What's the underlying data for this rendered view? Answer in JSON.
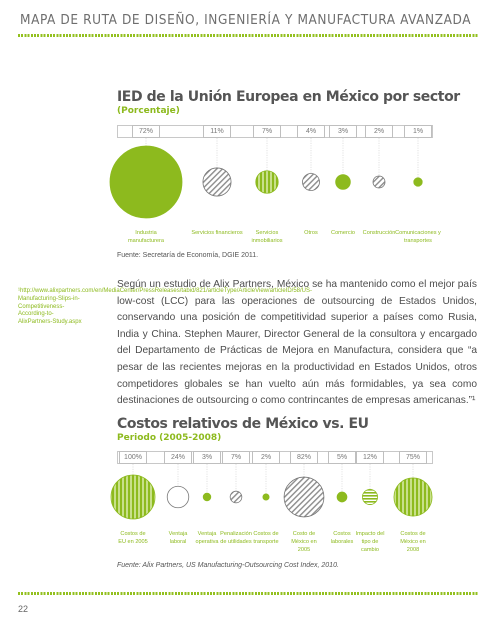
{
  "header": {
    "title": "MAPA DE RUTA DE DISEÑO, INGENIERÍA Y MANUFACTURA AVANZADA"
  },
  "chart_data": [
    {
      "type": "bubble",
      "title": "IED de la Unión Europea en México por sector",
      "subtitle": "(Porcentaje)",
      "categories": [
        "Industria manufacturera",
        "Servicios financieros",
        "Servicios inmobiliarios",
        "Otros",
        "Comercio",
        "Construcción",
        "Comunicaciones y transportes"
      ],
      "labels": [
        "72%",
        "11%",
        "7%",
        "4%",
        "3%",
        "2%",
        "1%"
      ],
      "values": [
        72,
        11,
        7,
        4,
        3,
        2,
        1
      ],
      "source": "Fuente: Secretaría de Economía, DGIE 2011."
    },
    {
      "type": "bubble",
      "title": "Costos relativos de México vs. EU",
      "subtitle": "Periodo (2005-2008)",
      "categories": [
        "Costos de EU en 2005",
        "Ventaja laboral",
        "Ventaja operativa",
        "Penalización de utilidades",
        "Costos de transporte",
        "Costo de México en 2005",
        "Costos laborales",
        "Impacto del tipo de cambio",
        "Costos de México en 2008"
      ],
      "labels": [
        "100%",
        "24%",
        "3%",
        "7%",
        "2%",
        "82%",
        "5%",
        "12%",
        "75%"
      ],
      "values": [
        100,
        24,
        3,
        7,
        2,
        82,
        5,
        12,
        75
      ],
      "source": "Fuente: Alix Partners, US Manufacturing-Outsourcing Cost Index, 2010."
    }
  ],
  "sidenote": "¹http://www.alixpartners.com/en/MediaCenter/PressReleases/tabid/821/articleType/ArticleView/articleID/58/US-Manufacturing-Slips-in-Competitiveness-According-to-AlixPartners-Study.aspx",
  "paragraph": "Según un estudio de Alix Partners, México se ha mantenido como el mejor país low-cost (LCC) para las operaciones de outsourcing de Estados Unidos, conservando una posición de competitividad superior a países como Rusia, India y China. Stephen Maurer, Director General de la consultora y encargado del Departamento de Prácticas de Mejora en Manufactura, considera que “a pesar de las recientes mejoras en la productividad en Estados Unidos, otros competidores globales se han vuelto aún más formidables, ya sea como destinaciones de outsourcing o como contrincantes de empresas americanas.”¹",
  "page_number": "22",
  "colors": {
    "green": "#8dba1e",
    "light_green": "#c8e08a",
    "gray": "#8c8c8c"
  }
}
